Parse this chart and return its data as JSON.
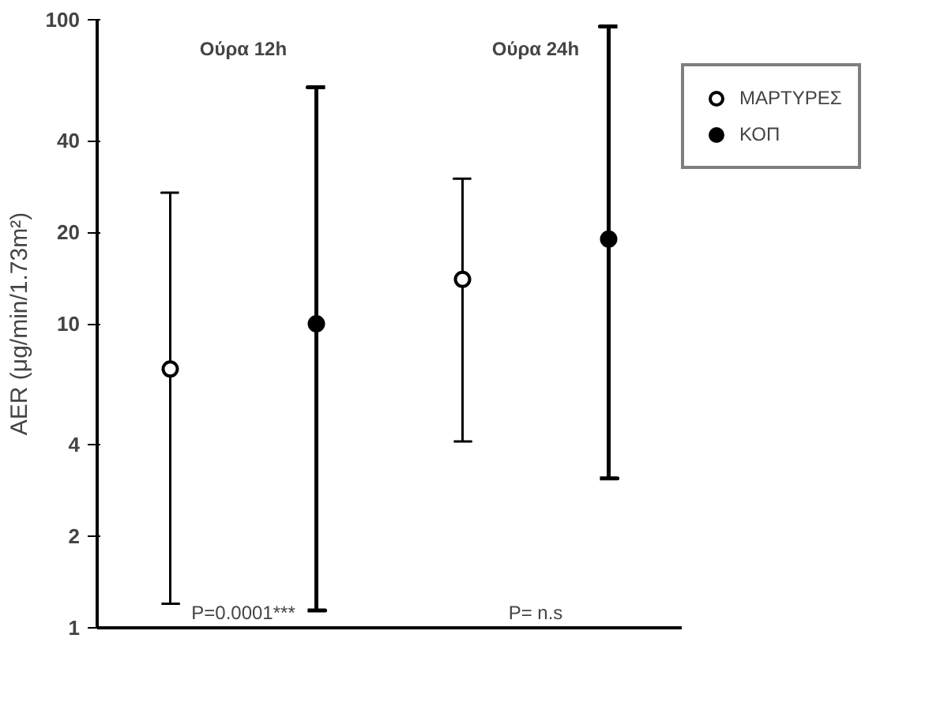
{
  "chart_data": {
    "type": "scatter",
    "ylabel": "AER (μg/min/1.73m²)",
    "log": "y",
    "ylim": [
      1,
      100
    ],
    "yticks": [
      1,
      2,
      4,
      10,
      20,
      40,
      100
    ],
    "grid": false,
    "legend": "top right",
    "marker": "circle",
    "tick_labels": "y",
    "categories": [
      null,
      null,
      null,
      null
    ],
    "series": [
      {
        "name": "ΜΑΡΤΥΡΕΣ",
        "color": "#ffffff",
        "values": [
          7.1,
          null,
          14,
          null
        ],
        "errors": [
          [
            1.2,
            27
          ],
          null,
          [
            4.1,
            30
          ],
          null
        ]
      },
      {
        "name": "ΚΟΠ",
        "color": "#000000",
        "values": [
          null,
          10,
          null,
          19
        ],
        "errors": [
          null,
          [
            1.14,
            60
          ],
          null,
          [
            3.1,
            95
          ]
        ]
      }
    ],
    "annotations": [
      "Ούρα 12h",
      "Ούρα 24h",
      "P=0.0001***",
      "P= n.s"
    ]
  }
}
